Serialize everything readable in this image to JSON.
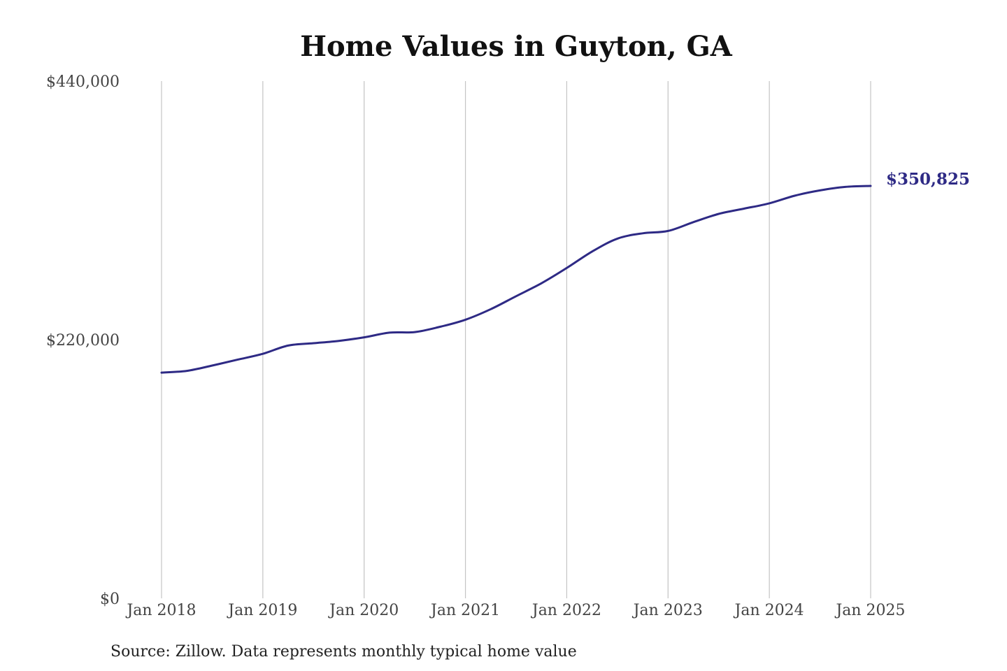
{
  "chart_data": {
    "type": "line",
    "title": "Home Values in Guyton, GA",
    "xlabel": "",
    "ylabel": "",
    "x_ticks": [
      "Jan 2018",
      "Jan 2019",
      "Jan 2020",
      "Jan 2021",
      "Jan 2022",
      "Jan 2023",
      "Jan 2024",
      "Jan 2025"
    ],
    "y_ticks": [
      {
        "value": 0,
        "label": "$0"
      },
      {
        "value": 220000,
        "label": "$220,000"
      },
      {
        "value": 440000,
        "label": "$440,000"
      }
    ],
    "ylim": [
      0,
      440000
    ],
    "xlim": [
      "2018-01",
      "2025-01"
    ],
    "grid": {
      "vertical": true,
      "horizontal": false
    },
    "series": [
      {
        "color": "#2e2a85",
        "points": [
          {
            "x": "2018-01",
            "y": 192000
          },
          {
            "x": "2018-04",
            "y": 193500
          },
          {
            "x": "2018-07",
            "y": 198000
          },
          {
            "x": "2018-10",
            "y": 203000
          },
          {
            "x": "2019-01",
            "y": 208000
          },
          {
            "x": "2019-04",
            "y": 215000
          },
          {
            "x": "2019-07",
            "y": 217000
          },
          {
            "x": "2019-10",
            "y": 219000
          },
          {
            "x": "2020-01",
            "y": 222000
          },
          {
            "x": "2020-04",
            "y": 226000
          },
          {
            "x": "2020-07",
            "y": 226500
          },
          {
            "x": "2020-10",
            "y": 231000
          },
          {
            "x": "2021-01",
            "y": 237000
          },
          {
            "x": "2021-04",
            "y": 246000
          },
          {
            "x": "2021-07",
            "y": 257000
          },
          {
            "x": "2021-10",
            "y": 268000
          },
          {
            "x": "2022-01",
            "y": 281000
          },
          {
            "x": "2022-04",
            "y": 295000
          },
          {
            "x": "2022-07",
            "y": 306000
          },
          {
            "x": "2022-10",
            "y": 310500
          },
          {
            "x": "2023-01",
            "y": 312500
          },
          {
            "x": "2023-04",
            "y": 320000
          },
          {
            "x": "2023-07",
            "y": 327000
          },
          {
            "x": "2023-10",
            "y": 331500
          },
          {
            "x": "2024-01",
            "y": 336000
          },
          {
            "x": "2024-04",
            "y": 342500
          },
          {
            "x": "2024-07",
            "y": 347000
          },
          {
            "x": "2024-10",
            "y": 350000
          },
          {
            "x": "2025-01",
            "y": 350825
          }
        ]
      }
    ],
    "end_label": "$350,825",
    "source_note": "Source: Zillow. Data represents monthly typical home value"
  }
}
